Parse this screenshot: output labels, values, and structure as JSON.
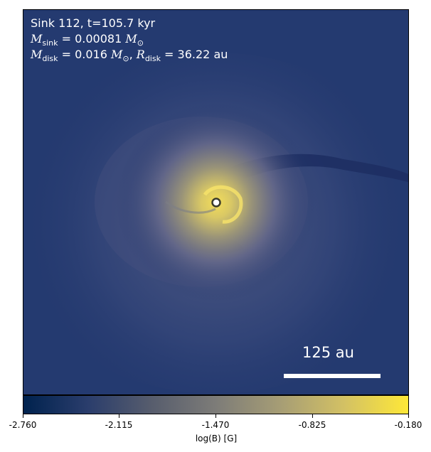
{
  "annotations": {
    "line1": "Sink 112, t=105.7 kyr",
    "msink_symbol": "M",
    "msink_sub": "sink",
    "msink_value": " = 0.00081 ",
    "msun": "M",
    "msun_sub": "⊙",
    "mdisk_symbol": "M",
    "mdisk_sub": "disk",
    "mdisk_value": " = 0.016 ",
    "rdisk_symbol": "R",
    "rdisk_sub": "disk",
    "rdisk_value": " = 36.22 au",
    "comma": ", "
  },
  "scale_bar": {
    "label": "125 au"
  },
  "colorbar": {
    "label": "log(B) [G]",
    "ticks": [
      "-2.760",
      "-2.115",
      "-1.470",
      "-0.825",
      "-0.180"
    ],
    "colors": [
      "#00224e",
      "#2a3d6c",
      "#575d6d",
      "#7d7c78",
      "#a69d75",
      "#d3c164",
      "#fee838"
    ]
  }
}
